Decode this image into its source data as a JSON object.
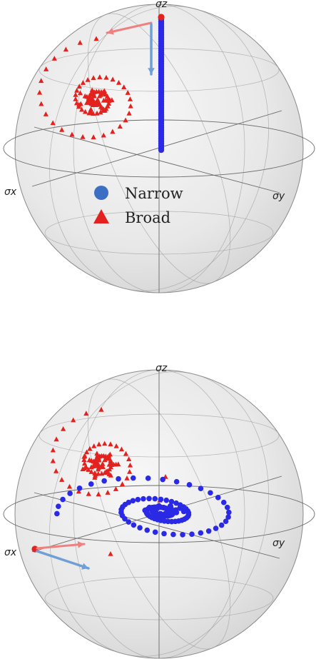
{
  "colors": {
    "narrow": "#2a2ae6",
    "broad": "#e3221f",
    "legend_narrow": "#3a6fc4",
    "arrow_red": "#f08080",
    "arrow_blue": "#6f9fd6",
    "sphere_fill": "#e9e9e9"
  },
  "legend": {
    "narrow_label": "Narrow",
    "broad_label": "Broad",
    "narrow_marker": "circle",
    "broad_marker": "triangle"
  },
  "panels": [
    {
      "name": "top-bloch-sphere",
      "axes": {
        "z": "σz",
        "x": "σx",
        "y": "σy"
      },
      "narrow_trajectory": "vertical line from north pole to sphere center",
      "broad_trajectory": "spiral converging toward upper-left point",
      "arrows": [
        "red arrow from north pole toward left",
        "blue arrow from north pole downward"
      ]
    },
    {
      "name": "bottom-bloch-sphere",
      "axes": {
        "z": "σz",
        "x": "σx",
        "y": "σy"
      },
      "narrow_trajectory": "spiral in equatorial plane converging to center",
      "broad_trajectory": "spiral converging toward upper-left point",
      "arrows": [
        "red arrow from σx point toward right",
        "blue arrow from σx point toward lower-right"
      ]
    }
  ]
}
